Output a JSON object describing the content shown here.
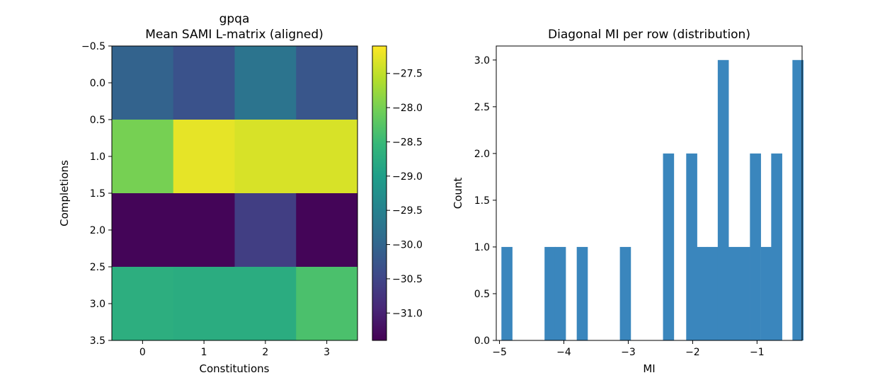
{
  "colors": {
    "viridis": [
      "#440154",
      "#482878",
      "#3e4989",
      "#31688e",
      "#26828e",
      "#1f9e89",
      "#35b779",
      "#6ece58",
      "#b5de2b",
      "#fde725"
    ],
    "hist_bar": "#3a86bd"
  },
  "chart_data": [
    {
      "type": "heatmap",
      "title_line1": "gpqa",
      "title_line2": "Mean SAMI L-matrix (aligned)",
      "xlabel": "Constitutions",
      "ylabel": "Completions",
      "x_ticks": [
        "0",
        "1",
        "2",
        "3"
      ],
      "y_ticks": [
        "−0.5",
        "0.0",
        "0.5",
        "1.0",
        "1.5",
        "2.0",
        "2.5",
        "3.0",
        "3.5"
      ],
      "values": [
        [
          -30.05,
          -30.3,
          -29.75,
          -30.25
        ],
        [
          -28.0,
          -27.25,
          -27.35,
          -27.35
        ],
        [
          -31.35,
          -31.35,
          -30.6,
          -31.35
        ],
        [
          -28.7,
          -28.75,
          -28.75,
          -28.35
        ]
      ],
      "vmin": -31.4,
      "vmax": -27.1,
      "colorbar_ticks": [
        -27.5,
        -28.0,
        -28.5,
        -29.0,
        -29.5,
        -30.0,
        -30.5,
        -31.0
      ],
      "colorbar_tick_labels": [
        "−27.5",
        "−28.0",
        "−28.5",
        "−29.0",
        "−29.5",
        "−30.0",
        "−30.5",
        "−31.0"
      ]
    },
    {
      "type": "bar",
      "title": "Diagonal MI per row (distribution)",
      "xlabel": "MI",
      "ylabel": "Count",
      "xlim": [
        -5.05,
        -0.3
      ],
      "ylim": [
        0,
        3.15
      ],
      "bin_width": 0.165,
      "bins": [
        {
          "start": -4.97,
          "count": 1
        },
        {
          "start": -4.3,
          "count": 1
        },
        {
          "start": -4.14,
          "count": 1
        },
        {
          "start": -3.8,
          "count": 1
        },
        {
          "start": -3.13,
          "count": 1
        },
        {
          "start": -2.46,
          "count": 2
        },
        {
          "start": -2.1,
          "count": 2
        },
        {
          "start": -1.94,
          "count": 1
        },
        {
          "start": -1.78,
          "count": 1
        },
        {
          "start": -1.61,
          "count": 3
        },
        {
          "start": -1.45,
          "count": 1
        },
        {
          "start": -1.28,
          "count": 1
        },
        {
          "start": -1.11,
          "count": 2
        },
        {
          "start": -0.94,
          "count": 1
        },
        {
          "start": -0.78,
          "count": 2
        },
        {
          "start": -0.45,
          "count": 3
        }
      ],
      "x_ticks": [
        -5,
        -4,
        -3,
        -2,
        -1
      ],
      "x_tick_labels": [
        "−5",
        "−4",
        "−3",
        "−2",
        "−1"
      ],
      "y_ticks": [
        0,
        0.5,
        1.0,
        1.5,
        2.0,
        2.5,
        3.0
      ],
      "y_tick_labels": [
        "0.0",
        "0.5",
        "1.0",
        "1.5",
        "2.0",
        "2.5",
        "3.0"
      ]
    }
  ]
}
